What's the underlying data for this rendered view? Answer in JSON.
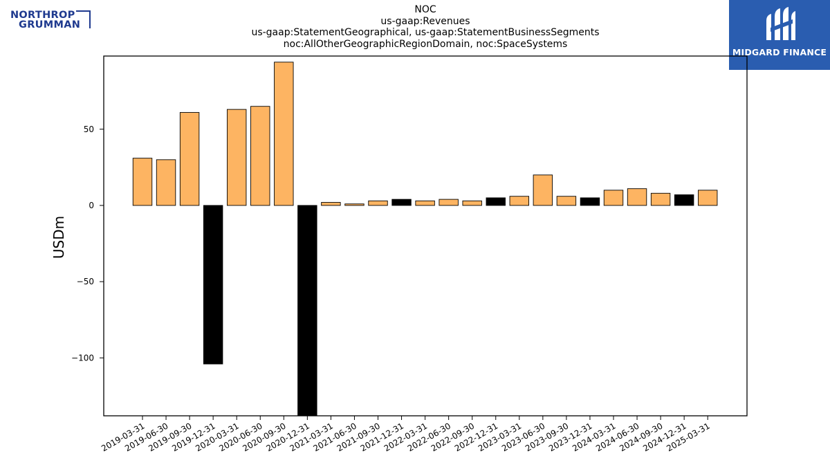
{
  "header": {
    "company_logo_text_line1": "NORTHROP",
    "company_logo_text_line2": "GRUMMAN",
    "brand_logo_text": "MIDGARD FINANCE"
  },
  "chart_data": {
    "type": "bar",
    "title_lines": [
      "NOC",
      "us-gaap:Revenues",
      "us-gaap:StatementGeographical, us-gaap:StatementBusinessSegments",
      "noc:AllOtherGeographicRegionDomain, noc:SpaceSystems"
    ],
    "ylabel": "USDm",
    "xlabel": "",
    "ylim": [
      -138,
      98
    ],
    "yticks": [
      -100,
      -50,
      0,
      50
    ],
    "ytick_labels": [
      "−100",
      "−50",
      "0",
      "50"
    ],
    "grid": false,
    "colors": {
      "positive_bar": "#fdb462",
      "negative_period_bar": "#000000",
      "edge": "#000000"
    },
    "categories": [
      "2019-03-31",
      "2019-06-30",
      "2019-09-30",
      "2019-12-31",
      "2020-03-31",
      "2020-06-30",
      "2020-09-30",
      "2020-12-31",
      "2021-03-31",
      "2021-06-30",
      "2021-09-30",
      "2021-12-31",
      "2022-03-31",
      "2022-06-30",
      "2022-09-30",
      "2022-12-31",
      "2023-03-31",
      "2023-06-30",
      "2023-09-30",
      "2023-12-31",
      "2024-03-31",
      "2024-06-30",
      "2024-09-30",
      "2024-12-31",
      "2025-03-31"
    ],
    "values": [
      31,
      30,
      61,
      -104,
      63,
      65,
      94,
      -140,
      2,
      1,
      3,
      4,
      3,
      4,
      3,
      5,
      6,
      20,
      6,
      5,
      10,
      11,
      8,
      7,
      10
    ],
    "bar_color_keys": [
      "o",
      "o",
      "o",
      "k",
      "o",
      "o",
      "o",
      "k",
      "o",
      "o",
      "o",
      "k",
      "o",
      "o",
      "o",
      "k",
      "o",
      "o",
      "o",
      "k",
      "o",
      "o",
      "o",
      "k",
      "o"
    ]
  }
}
